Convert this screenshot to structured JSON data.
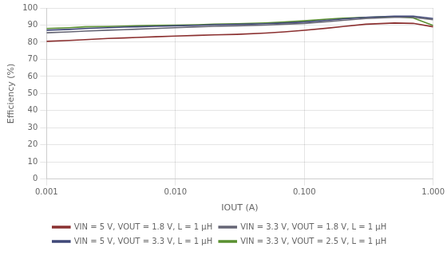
{
  "chart_data": {
    "type": "line",
    "x_label": "IOUT (A)",
    "y_label": "Efficiency (%)",
    "log": "x",
    "xlim": [
      0.001,
      1.0
    ],
    "ylim": [
      0,
      100
    ],
    "xticks": [
      0.001,
      {
        "value": 0.01,
        "label": "0.010"
      },
      {
        "value": 0.1,
        "label": "0.100"
      },
      {
        "value": 1.0,
        "label": "1.000"
      }
    ],
    "yticks": [
      0,
      10,
      20,
      30,
      40,
      50,
      60,
      70,
      80,
      90,
      100
    ],
    "grid": true,
    "legend": "bottom",
    "x": [
      0.001,
      0.0015,
      0.002,
      0.003,
      0.004,
      0.005,
      0.007,
      0.01,
      0.015,
      0.02,
      0.03,
      0.05,
      0.07,
      0.1,
      0.15,
      0.2,
      0.3,
      0.5,
      0.7,
      1.0
    ],
    "series": [
      {
        "name": "VIN = 5 V, VOUT = 1.8 V, L = 1 μH",
        "color": "#8B3030",
        "values": [
          80.5,
          81.0,
          81.5,
          82.2,
          82.5,
          82.8,
          83.2,
          83.6,
          84.0,
          84.3,
          84.6,
          85.3,
          86.0,
          87.0,
          88.2,
          89.2,
          90.5,
          91.2,
          91.0,
          89.0
        ]
      },
      {
        "name": "VIN = 3.3 V, VOUT = 1.8 V, L = 1 μH",
        "color": "#666675",
        "values": [
          85.5,
          86.0,
          86.5,
          87.0,
          87.3,
          87.6,
          88.0,
          88.5,
          89.0,
          89.3,
          89.6,
          90.0,
          90.5,
          91.0,
          92.0,
          92.8,
          93.8,
          94.5,
          94.5,
          93.2
        ]
      },
      {
        "name": "VIN = 5 V, VOUT = 3.3 V, L = 1 μH",
        "color": "#404878",
        "values": [
          87.0,
          87.5,
          88.0,
          88.5,
          88.8,
          89.0,
          89.3,
          89.6,
          89.9,
          90.2,
          90.4,
          90.8,
          91.2,
          91.8,
          92.8,
          93.6,
          94.5,
          95.2,
          95.2,
          93.8
        ]
      },
      {
        "name": "VIN = 3.3 V, VOUT = 2.5 V, L = 1 μH",
        "color": "#5a9030",
        "values": [
          88.0,
          88.5,
          89.0,
          89.2,
          89.4,
          89.6,
          89.8,
          90.0,
          90.2,
          90.5,
          90.8,
          91.3,
          91.8,
          92.5,
          93.5,
          94.0,
          94.5,
          95.0,
          94.2,
          89.8
        ]
      }
    ]
  }
}
